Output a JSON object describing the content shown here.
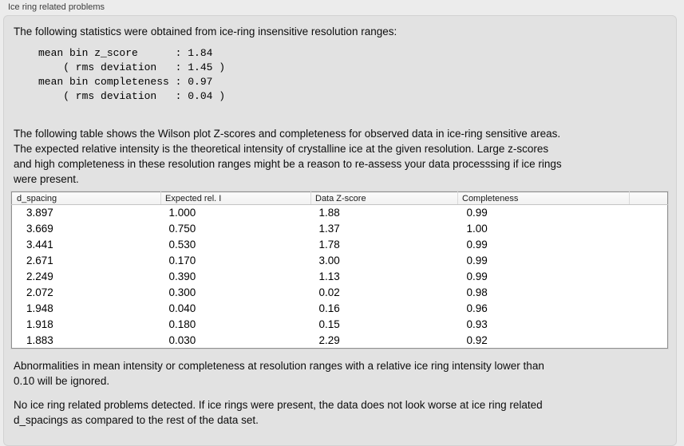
{
  "window": {
    "section_title": "Ice ring related problems"
  },
  "panel": {
    "intro": "The following statistics were obtained from ice-ring insensitive resolution ranges:",
    "stats_block": "mean bin z_score      : 1.84\n    ( rms deviation   : 1.45 )\nmean bin completeness : 0.97\n    ( rms deviation   : 0.04 )",
    "table_description": "The following table shows the Wilson plot Z-scores and completeness for observed data in ice-ring sensitive areas.\nThe expected relative intensity is the theoretical intensity of crystalline ice at the given resolution. Large z-scores\nand high completeness in these resolution ranges might be a reason to re-assess your data processsing if ice rings\nwere present.",
    "note_ignore": "Abnormalities in mean intensity or completeness at resolution ranges with a relative ice ring intensity lower than\n0.10 will be ignored.",
    "conclusion": "No ice ring related problems detected. If ice rings were present, the data does not look worse at ice ring related\nd_spacings as compared to the rest of the data set."
  },
  "table": {
    "columns": [
      "d_spacing",
      "Expected rel. I",
      "Data Z-score",
      "Completeness",
      ""
    ],
    "rows": [
      [
        "3.897",
        "1.000",
        "1.88",
        "0.99"
      ],
      [
        "3.669",
        "0.750",
        "1.37",
        "1.00"
      ],
      [
        "3.441",
        "0.530",
        "1.78",
        "0.99"
      ],
      [
        "2.671",
        "0.170",
        "3.00",
        "0.99"
      ],
      [
        "2.249",
        "0.390",
        "1.13",
        "0.99"
      ],
      [
        "2.072",
        "0.300",
        "0.02",
        "0.98"
      ],
      [
        "1.948",
        "0.040",
        "0.16",
        "0.96"
      ],
      [
        "1.918",
        "0.180",
        "0.15",
        "0.93"
      ],
      [
        "1.883",
        "0.030",
        "2.29",
        "0.92"
      ]
    ]
  },
  "colors": {
    "page_bg": "#ececec",
    "panel_bg": "#e2e2e2",
    "table_border": "#8f8f8f",
    "table_header_bg": "#f5f5f5"
  }
}
